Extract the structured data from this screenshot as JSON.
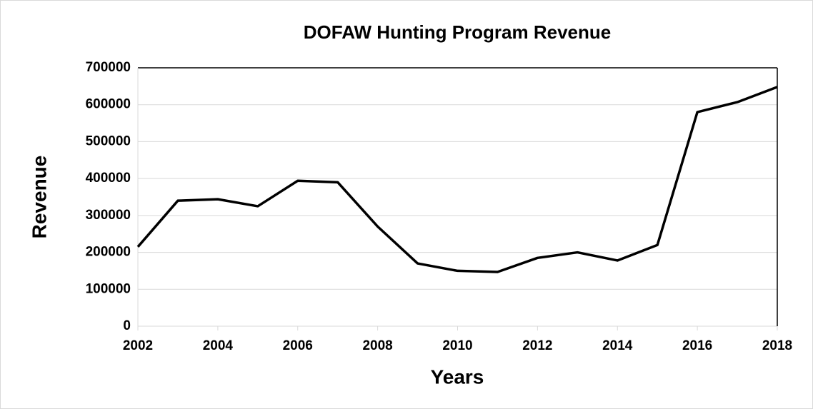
{
  "chart_data": {
    "type": "line",
    "title": "DOFAW Hunting Program Revenue",
    "x_label": "Years",
    "y_label": "Revenue",
    "x": [
      2002,
      2003,
      2004,
      2005,
      2006,
      2007,
      2008,
      2009,
      2010,
      2011,
      2012,
      2013,
      2014,
      2015,
      2016,
      2017,
      2018
    ],
    "series": [
      {
        "name": "Revenue",
        "color": "#000000",
        "values": [
          215000,
          340000,
          344000,
          325000,
          394000,
          390000,
          270000,
          170000,
          150000,
          147000,
          185000,
          200000,
          178000,
          220000,
          580000,
          607000,
          648000
        ]
      }
    ],
    "xlim": [
      2002,
      2018
    ],
    "xticks": [
      2002,
      2004,
      2006,
      2008,
      2010,
      2012,
      2014,
      2016,
      2018
    ],
    "ylim": [
      0,
      700000
    ],
    "yticks": [
      0,
      100000,
      200000,
      300000,
      400000,
      500000,
      600000,
      700000
    ],
    "grid": true
  }
}
